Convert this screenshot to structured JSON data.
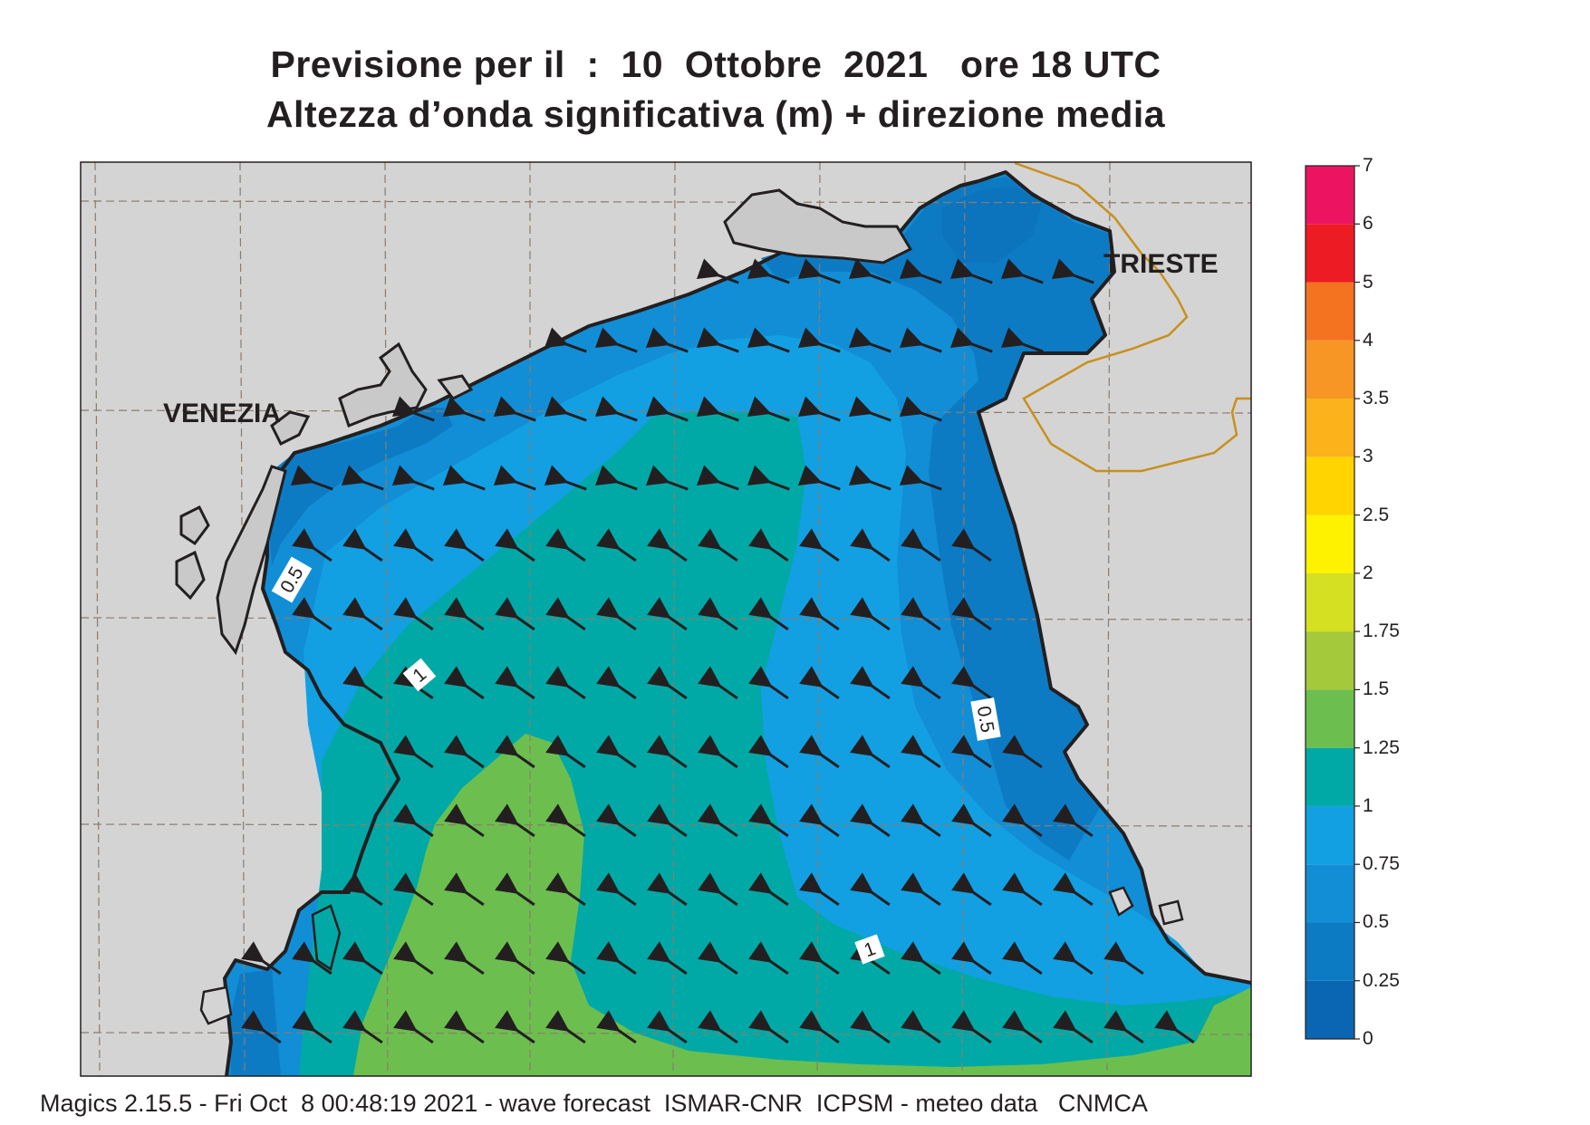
{
  "title_line1": "Previsione per il  :  10  Ottobre  2021   ore 18 UTC",
  "title_line2": "Altezza d’onda significativa (m) + direzione media",
  "cities": [
    "VENEZIA",
    "TRIESTE"
  ],
  "contour_labels": [
    "0.5",
    "1",
    "1",
    "0.5"
  ],
  "colorbar": {
    "levels": [
      "0",
      "0.25",
      "0.5",
      "0.75",
      "1",
      "1.25",
      "1.5",
      "1.75",
      "2",
      "2.5",
      "3",
      "3.5",
      "4",
      "5",
      "6",
      "7"
    ],
    "colors": [
      "#0a66b3",
      "#0d7bc4",
      "#128ed6",
      "#12a0e3",
      "#00a9a6",
      "#6cbf4f",
      "#a4c93a",
      "#d4e021",
      "#fff200",
      "#ffd400",
      "#fbb21b",
      "#f79625",
      "#f47321",
      "#ed1c24",
      "#ec1460"
    ]
  },
  "map_colors": {
    "land": "#d4d4d4",
    "coast": "#231f20",
    "arrow": "#231f20",
    "grid": "#8c7b6b",
    "border": "#c8901c"
  },
  "footer": "Magics 2.15.5 - Fri Oct  8 00:48:19 2021 - wave forecast  ISMAR-CNR  ICPSM - meteo data   CNMCA"
}
